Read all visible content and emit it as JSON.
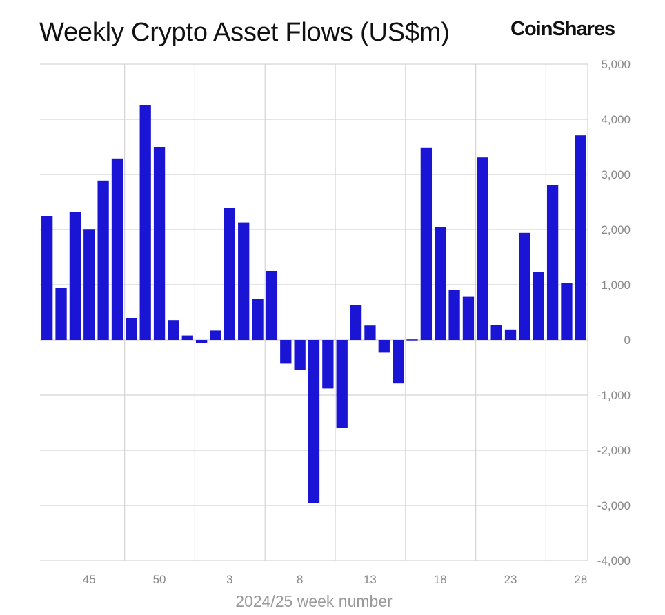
{
  "chart_data": {
    "type": "bar",
    "title": "Weekly Crypto Asset Flows (US$m)",
    "brand": "CoinShares",
    "xlabel": "2024/25 week number",
    "ylabel": "",
    "ylim": [
      -4000,
      5000
    ],
    "yticks": [
      5000,
      4000,
      3000,
      2000,
      1000,
      0,
      -1000,
      -2000,
      -3000,
      -4000
    ],
    "ytick_labels": [
      "5,000",
      "4,000",
      "3,000",
      "2,000",
      "1,000",
      "0",
      "-1,000",
      "-2,000",
      "-3,000",
      "-4,000"
    ],
    "xtick_labels": [
      "45",
      "50",
      "3",
      "8",
      "13",
      "18",
      "23",
      "28"
    ],
    "grid": true,
    "bar_color": "#1a14d4",
    "categories": [
      "42",
      "43",
      "44",
      "45",
      "46",
      "47",
      "48",
      "49",
      "50",
      "51",
      "52",
      "1",
      "2",
      "3",
      "4",
      "5",
      "6",
      "7",
      "8",
      "9",
      "10",
      "11",
      "12",
      "13",
      "14",
      "15",
      "16",
      "17",
      "18",
      "19",
      "20",
      "21",
      "22",
      "23",
      "24",
      "25",
      "26",
      "27",
      "28"
    ],
    "values": [
      2250,
      940,
      2320,
      2010,
      2890,
      3290,
      400,
      4260,
      3500,
      360,
      80,
      -60,
      170,
      2400,
      2130,
      740,
      1250,
      -430,
      -540,
      -2960,
      -880,
      -1600,
      630,
      260,
      -230,
      -790,
      10,
      3490,
      2050,
      900,
      780,
      3310,
      270,
      190,
      1940,
      1230,
      2800,
      1030,
      3710
    ]
  }
}
